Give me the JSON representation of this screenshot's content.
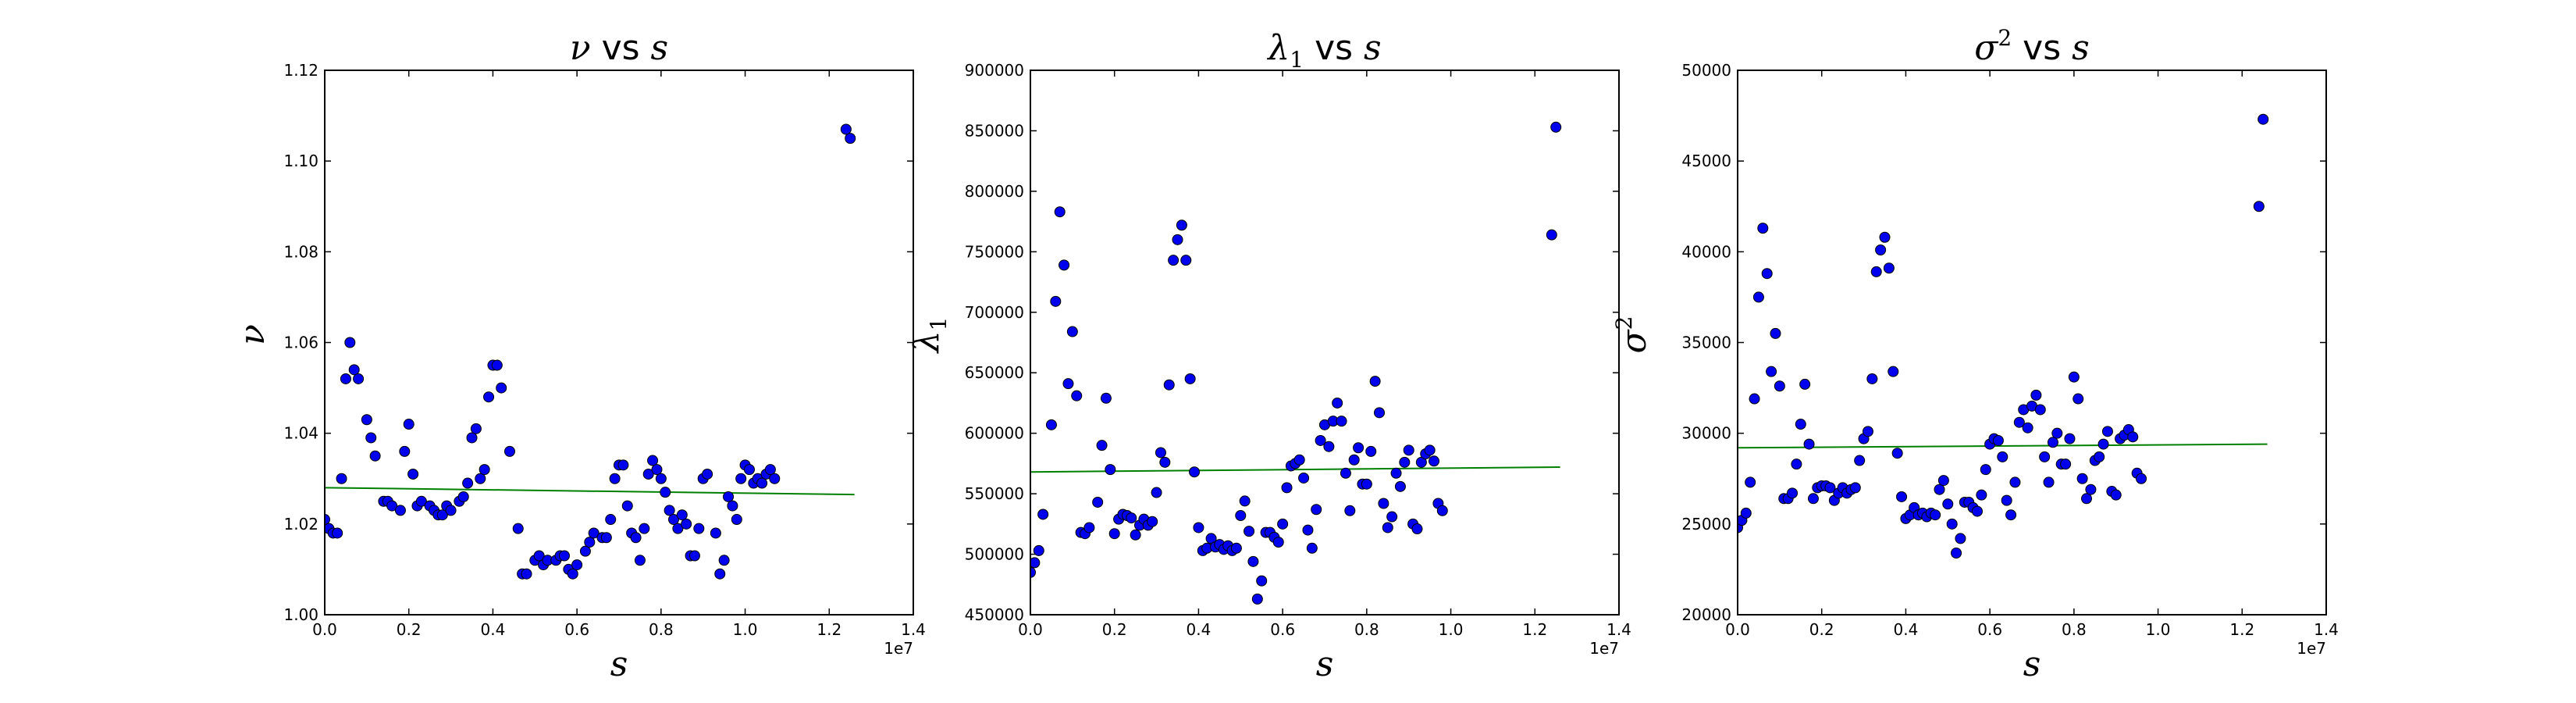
{
  "figure": {
    "colors": {
      "point": "#0000ee",
      "point_edge": "#000000",
      "fit": "#008000",
      "axis": "#000000",
      "background": "#ffffff"
    }
  },
  "chart_data": [
    {
      "type": "scatter",
      "title_symbol": "ν",
      "title_sub": "",
      "title_sup": "",
      "title_mid": " vs ",
      "title_var": "s",
      "xlabel": "s",
      "ylabel": "ν",
      "ylabel_sub": "",
      "ylabel_sup": "",
      "x_offset_label": "1e7",
      "xlim": [
        0,
        1.4
      ],
      "ylim": [
        1.0,
        1.12
      ],
      "xticks": [
        0.0,
        0.2,
        0.4,
        0.6,
        0.8,
        1.0,
        1.2,
        1.4
      ],
      "xtick_labels": [
        "0.0",
        "0.2",
        "0.4",
        "0.6",
        "0.8",
        "1.0",
        "1.2",
        "1.4"
      ],
      "yticks": [
        1.0,
        1.02,
        1.04,
        1.06,
        1.08,
        1.1,
        1.12
      ],
      "ytick_labels": [
        "1.00",
        "1.02",
        "1.04",
        "1.06",
        "1.08",
        "1.10",
        "1.12"
      ],
      "fit_line": {
        "x": [
          0.0,
          1.26
        ],
        "y": [
          1.028,
          1.0265
        ]
      },
      "points": [
        [
          0.0,
          1.021
        ],
        [
          0.01,
          1.019
        ],
        [
          0.02,
          1.018
        ],
        [
          0.03,
          1.018
        ],
        [
          0.04,
          1.03
        ],
        [
          0.05,
          1.052
        ],
        [
          0.06,
          1.06
        ],
        [
          0.07,
          1.054
        ],
        [
          0.08,
          1.052
        ],
        [
          0.1,
          1.043
        ],
        [
          0.11,
          1.039
        ],
        [
          0.12,
          1.035
        ],
        [
          0.14,
          1.025
        ],
        [
          0.15,
          1.025
        ],
        [
          0.16,
          1.024
        ],
        [
          0.18,
          1.023
        ],
        [
          0.19,
          1.036
        ],
        [
          0.2,
          1.042
        ],
        [
          0.21,
          1.031
        ],
        [
          0.22,
          1.024
        ],
        [
          0.23,
          1.025
        ],
        [
          0.25,
          1.024
        ],
        [
          0.26,
          1.023
        ],
        [
          0.27,
          1.022
        ],
        [
          0.28,
          1.022
        ],
        [
          0.29,
          1.024
        ],
        [
          0.3,
          1.023
        ],
        [
          0.32,
          1.025
        ],
        [
          0.33,
          1.026
        ],
        [
          0.34,
          1.029
        ],
        [
          0.35,
          1.039
        ],
        [
          0.36,
          1.041
        ],
        [
          0.37,
          1.03
        ],
        [
          0.38,
          1.032
        ],
        [
          0.39,
          1.048
        ],
        [
          0.4,
          1.055
        ],
        [
          0.41,
          1.055
        ],
        [
          0.42,
          1.05
        ],
        [
          0.44,
          1.036
        ],
        [
          0.46,
          1.019
        ],
        [
          0.47,
          1.009
        ],
        [
          0.48,
          1.009
        ],
        [
          0.5,
          1.012
        ],
        [
          0.51,
          1.013
        ],
        [
          0.52,
          1.011
        ],
        [
          0.53,
          1.012
        ],
        [
          0.55,
          1.012
        ],
        [
          0.56,
          1.013
        ],
        [
          0.57,
          1.013
        ],
        [
          0.58,
          1.01
        ],
        [
          0.59,
          1.009
        ],
        [
          0.6,
          1.011
        ],
        [
          0.62,
          1.014
        ],
        [
          0.63,
          1.016
        ],
        [
          0.64,
          1.018
        ],
        [
          0.66,
          1.017
        ],
        [
          0.67,
          1.017
        ],
        [
          0.68,
          1.021
        ],
        [
          0.69,
          1.03
        ],
        [
          0.7,
          1.033
        ],
        [
          0.71,
          1.033
        ],
        [
          0.72,
          1.024
        ],
        [
          0.73,
          1.018
        ],
        [
          0.74,
          1.017
        ],
        [
          0.75,
          1.012
        ],
        [
          0.76,
          1.019
        ],
        [
          0.77,
          1.031
        ],
        [
          0.78,
          1.034
        ],
        [
          0.79,
          1.032
        ],
        [
          0.8,
          1.03
        ],
        [
          0.81,
          1.027
        ],
        [
          0.82,
          1.023
        ],
        [
          0.83,
          1.021
        ],
        [
          0.84,
          1.019
        ],
        [
          0.85,
          1.022
        ],
        [
          0.86,
          1.02
        ],
        [
          0.87,
          1.013
        ],
        [
          0.88,
          1.013
        ],
        [
          0.89,
          1.019
        ],
        [
          0.9,
          1.03
        ],
        [
          0.91,
          1.031
        ],
        [
          0.93,
          1.018
        ],
        [
          0.94,
          1.009
        ],
        [
          0.95,
          1.012
        ],
        [
          0.96,
          1.026
        ],
        [
          0.97,
          1.024
        ],
        [
          0.98,
          1.021
        ],
        [
          0.99,
          1.03
        ],
        [
          1.0,
          1.033
        ],
        [
          1.01,
          1.032
        ],
        [
          1.02,
          1.029
        ],
        [
          1.03,
          1.03
        ],
        [
          1.04,
          1.029
        ],
        [
          1.05,
          1.031
        ],
        [
          1.06,
          1.032
        ],
        [
          1.07,
          1.03
        ],
        [
          1.24,
          1.107
        ],
        [
          1.25,
          1.105
        ]
      ]
    },
    {
      "type": "scatter",
      "title_symbol": "λ",
      "title_sub": "1",
      "title_sup": "",
      "title_mid": " vs ",
      "title_var": "s",
      "xlabel": "s",
      "ylabel": "λ",
      "ylabel_sub": "1",
      "ylabel_sup": "",
      "x_offset_label": "1e7",
      "xlim": [
        0,
        1.4
      ],
      "ylim": [
        450000,
        900000
      ],
      "xticks": [
        0.0,
        0.2,
        0.4,
        0.6,
        0.8,
        1.0,
        1.2,
        1.4
      ],
      "xtick_labels": [
        "0.0",
        "0.2",
        "0.4",
        "0.6",
        "0.8",
        "1.0",
        "1.2",
        "1.4"
      ],
      "yticks": [
        450000,
        500000,
        550000,
        600000,
        650000,
        700000,
        750000,
        800000,
        850000,
        900000
      ],
      "ytick_labels": [
        "450000",
        "500000",
        "550000",
        "600000",
        "650000",
        "700000",
        "750000",
        "800000",
        "850000",
        "900000"
      ],
      "fit_line": {
        "x": [
          0.0,
          1.26
        ],
        "y": [
          568000,
          572000
        ]
      },
      "points": [
        [
          0.0,
          485000
        ],
        [
          0.01,
          493000
        ],
        [
          0.02,
          503000
        ],
        [
          0.03,
          533000
        ],
        [
          0.05,
          607000
        ],
        [
          0.06,
          709000
        ],
        [
          0.07,
          783000
        ],
        [
          0.08,
          739000
        ],
        [
          0.09,
          641000
        ],
        [
          0.1,
          684000
        ],
        [
          0.11,
          631000
        ],
        [
          0.12,
          518000
        ],
        [
          0.13,
          517000
        ],
        [
          0.14,
          522000
        ],
        [
          0.16,
          543000
        ],
        [
          0.17,
          590000
        ],
        [
          0.18,
          629000
        ],
        [
          0.19,
          570000
        ],
        [
          0.2,
          517000
        ],
        [
          0.21,
          529000
        ],
        [
          0.22,
          533000
        ],
        [
          0.23,
          532000
        ],
        [
          0.24,
          530000
        ],
        [
          0.25,
          516000
        ],
        [
          0.26,
          524000
        ],
        [
          0.27,
          529000
        ],
        [
          0.28,
          524000
        ],
        [
          0.29,
          527000
        ],
        [
          0.3,
          551000
        ],
        [
          0.31,
          584000
        ],
        [
          0.32,
          576000
        ],
        [
          0.33,
          640000
        ],
        [
          0.34,
          743000
        ],
        [
          0.35,
          760000
        ],
        [
          0.36,
          772000
        ],
        [
          0.37,
          743000
        ],
        [
          0.38,
          645000
        ],
        [
          0.39,
          568000
        ],
        [
          0.4,
          522000
        ],
        [
          0.41,
          503000
        ],
        [
          0.42,
          505000
        ],
        [
          0.43,
          513000
        ],
        [
          0.44,
          506000
        ],
        [
          0.45,
          508000
        ],
        [
          0.46,
          504000
        ],
        [
          0.47,
          507000
        ],
        [
          0.48,
          503000
        ],
        [
          0.49,
          505000
        ],
        [
          0.5,
          532000
        ],
        [
          0.51,
          544000
        ],
        [
          0.52,
          519000
        ],
        [
          0.53,
          494000
        ],
        [
          0.54,
          463000
        ],
        [
          0.55,
          478000
        ],
        [
          0.56,
          518000
        ],
        [
          0.57,
          518000
        ],
        [
          0.58,
          514000
        ],
        [
          0.59,
          510000
        ],
        [
          0.6,
          525000
        ],
        [
          0.61,
          555000
        ],
        [
          0.62,
          573000
        ],
        [
          0.63,
          575000
        ],
        [
          0.64,
          578000
        ],
        [
          0.65,
          563000
        ],
        [
          0.66,
          520000
        ],
        [
          0.67,
          505000
        ],
        [
          0.68,
          537000
        ],
        [
          0.69,
          594000
        ],
        [
          0.7,
          607000
        ],
        [
          0.71,
          589000
        ],
        [
          0.72,
          610000
        ],
        [
          0.73,
          625000
        ],
        [
          0.74,
          610000
        ],
        [
          0.75,
          567000
        ],
        [
          0.76,
          536000
        ],
        [
          0.77,
          578000
        ],
        [
          0.78,
          588000
        ],
        [
          0.79,
          558000
        ],
        [
          0.8,
          558000
        ],
        [
          0.81,
          585000
        ],
        [
          0.82,
          643000
        ],
        [
          0.83,
          617000
        ],
        [
          0.84,
          542000
        ],
        [
          0.85,
          522000
        ],
        [
          0.86,
          531000
        ],
        [
          0.87,
          567000
        ],
        [
          0.88,
          556000
        ],
        [
          0.89,
          576000
        ],
        [
          0.9,
          586000
        ],
        [
          0.91,
          525000
        ],
        [
          0.92,
          521000
        ],
        [
          0.93,
          576000
        ],
        [
          0.94,
          583000
        ],
        [
          0.95,
          586000
        ],
        [
          0.96,
          577000
        ],
        [
          0.97,
          542000
        ],
        [
          0.98,
          536000
        ],
        [
          1.24,
          764000
        ],
        [
          1.25,
          853000
        ]
      ]
    },
    {
      "type": "scatter",
      "title_symbol": "σ",
      "title_sub": "",
      "title_sup": "2",
      "title_mid": " vs ",
      "title_var": "s",
      "xlabel": "s",
      "ylabel": "σ",
      "ylabel_sub": "",
      "ylabel_sup": "2",
      "x_offset_label": "1e7",
      "xlim": [
        0,
        1.4
      ],
      "ylim": [
        20000,
        50000
      ],
      "xticks": [
        0.0,
        0.2,
        0.4,
        0.6,
        0.8,
        1.0,
        1.2,
        1.4
      ],
      "xtick_labels": [
        "0.0",
        "0.2",
        "0.4",
        "0.6",
        "0.8",
        "1.0",
        "1.2",
        "1.4"
      ],
      "yticks": [
        20000,
        25000,
        30000,
        35000,
        40000,
        45000,
        50000
      ],
      "ytick_labels": [
        "20000",
        "25000",
        "30000",
        "35000",
        "40000",
        "45000",
        "50000"
      ],
      "fit_line": {
        "x": [
          0.0,
          1.26
        ],
        "y": [
          29200,
          29400
        ]
      },
      "points": [
        [
          0.0,
          24800
        ],
        [
          0.01,
          25200
        ],
        [
          0.02,
          25600
        ],
        [
          0.03,
          27300
        ],
        [
          0.04,
          31900
        ],
        [
          0.05,
          37500
        ],
        [
          0.06,
          41300
        ],
        [
          0.07,
          38800
        ],
        [
          0.08,
          33400
        ],
        [
          0.09,
          35500
        ],
        [
          0.1,
          32600
        ],
        [
          0.11,
          26400
        ],
        [
          0.12,
          26400
        ],
        [
          0.13,
          26700
        ],
        [
          0.14,
          28300
        ],
        [
          0.15,
          30500
        ],
        [
          0.16,
          32700
        ],
        [
          0.17,
          29400
        ],
        [
          0.18,
          26400
        ],
        [
          0.19,
          27000
        ],
        [
          0.2,
          27100
        ],
        [
          0.21,
          27100
        ],
        [
          0.22,
          27000
        ],
        [
          0.23,
          26300
        ],
        [
          0.24,
          26700
        ],
        [
          0.25,
          27000
        ],
        [
          0.26,
          26700
        ],
        [
          0.27,
          26900
        ],
        [
          0.28,
          27000
        ],
        [
          0.29,
          28500
        ],
        [
          0.3,
          29700
        ],
        [
          0.31,
          30100
        ],
        [
          0.32,
          33000
        ],
        [
          0.33,
          38900
        ],
        [
          0.34,
          40100
        ],
        [
          0.35,
          40800
        ],
        [
          0.36,
          39100
        ],
        [
          0.37,
          33400
        ],
        [
          0.38,
          28900
        ],
        [
          0.39,
          26500
        ],
        [
          0.4,
          25300
        ],
        [
          0.41,
          25500
        ],
        [
          0.42,
          25900
        ],
        [
          0.43,
          25500
        ],
        [
          0.44,
          25600
        ],
        [
          0.45,
          25400
        ],
        [
          0.46,
          25600
        ],
        [
          0.47,
          25500
        ],
        [
          0.48,
          26900
        ],
        [
          0.49,
          27400
        ],
        [
          0.5,
          26100
        ],
        [
          0.51,
          25000
        ],
        [
          0.52,
          23400
        ],
        [
          0.53,
          24200
        ],
        [
          0.54,
          26200
        ],
        [
          0.55,
          26200
        ],
        [
          0.56,
          25900
        ],
        [
          0.57,
          25700
        ],
        [
          0.58,
          26600
        ],
        [
          0.59,
          28000
        ],
        [
          0.6,
          29400
        ],
        [
          0.61,
          29700
        ],
        [
          0.62,
          29600
        ],
        [
          0.63,
          28700
        ],
        [
          0.64,
          26300
        ],
        [
          0.65,
          25500
        ],
        [
          0.66,
          27300
        ],
        [
          0.67,
          30600
        ],
        [
          0.68,
          31300
        ],
        [
          0.69,
          30300
        ],
        [
          0.7,
          31500
        ],
        [
          0.71,
          32100
        ],
        [
          0.72,
          31300
        ],
        [
          0.73,
          28700
        ],
        [
          0.74,
          27300
        ],
        [
          0.75,
          29500
        ],
        [
          0.76,
          30000
        ],
        [
          0.77,
          28300
        ],
        [
          0.78,
          28300
        ],
        [
          0.79,
          29700
        ],
        [
          0.8,
          33100
        ],
        [
          0.81,
          31900
        ],
        [
          0.82,
          27500
        ],
        [
          0.83,
          26400
        ],
        [
          0.84,
          26900
        ],
        [
          0.85,
          28500
        ],
        [
          0.86,
          28700
        ],
        [
          0.87,
          29400
        ],
        [
          0.88,
          30100
        ],
        [
          0.89,
          26800
        ],
        [
          0.9,
          26600
        ],
        [
          0.91,
          29700
        ],
        [
          0.92,
          29900
        ],
        [
          0.93,
          30200
        ],
        [
          0.94,
          29800
        ],
        [
          0.95,
          27800
        ],
        [
          0.96,
          27500
        ],
        [
          1.24,
          42500
        ],
        [
          1.25,
          47300
        ]
      ]
    }
  ]
}
